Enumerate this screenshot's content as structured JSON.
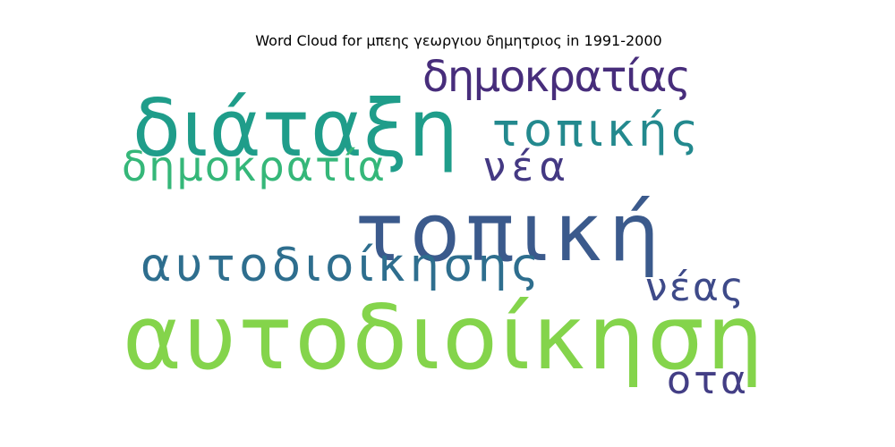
{
  "chart_data": {
    "type": "wordcloud",
    "title": "Word Cloud for μπεης γεωργιου δημητριος in 1991-2000",
    "words": [
      {
        "text": "αυτοδιοίκηση",
        "weight": 1.0,
        "color": "#84d44b"
      },
      {
        "text": "τοπική",
        "weight": 0.86,
        "color": "#3b5a8c"
      },
      {
        "text": "διάταξη",
        "weight": 0.74,
        "color": "#1f9d8a"
      },
      {
        "text": "αυτοδιοίκησης",
        "weight": 0.48,
        "color": "#2e6e8e"
      },
      {
        "text": "τοπικής",
        "weight": 0.46,
        "color": "#23898e"
      },
      {
        "text": "δημοκρατίας",
        "weight": 0.44,
        "color": "#472d7b"
      },
      {
        "text": "δημοκρατία",
        "weight": 0.42,
        "color": "#35b779"
      },
      {
        "text": "νέα",
        "weight": 0.4,
        "color": "#443983"
      },
      {
        "text": "νέας",
        "weight": 0.4,
        "color": "#3e4a89"
      },
      {
        "text": "οτα",
        "weight": 0.4,
        "color": "#433e85"
      }
    ]
  }
}
